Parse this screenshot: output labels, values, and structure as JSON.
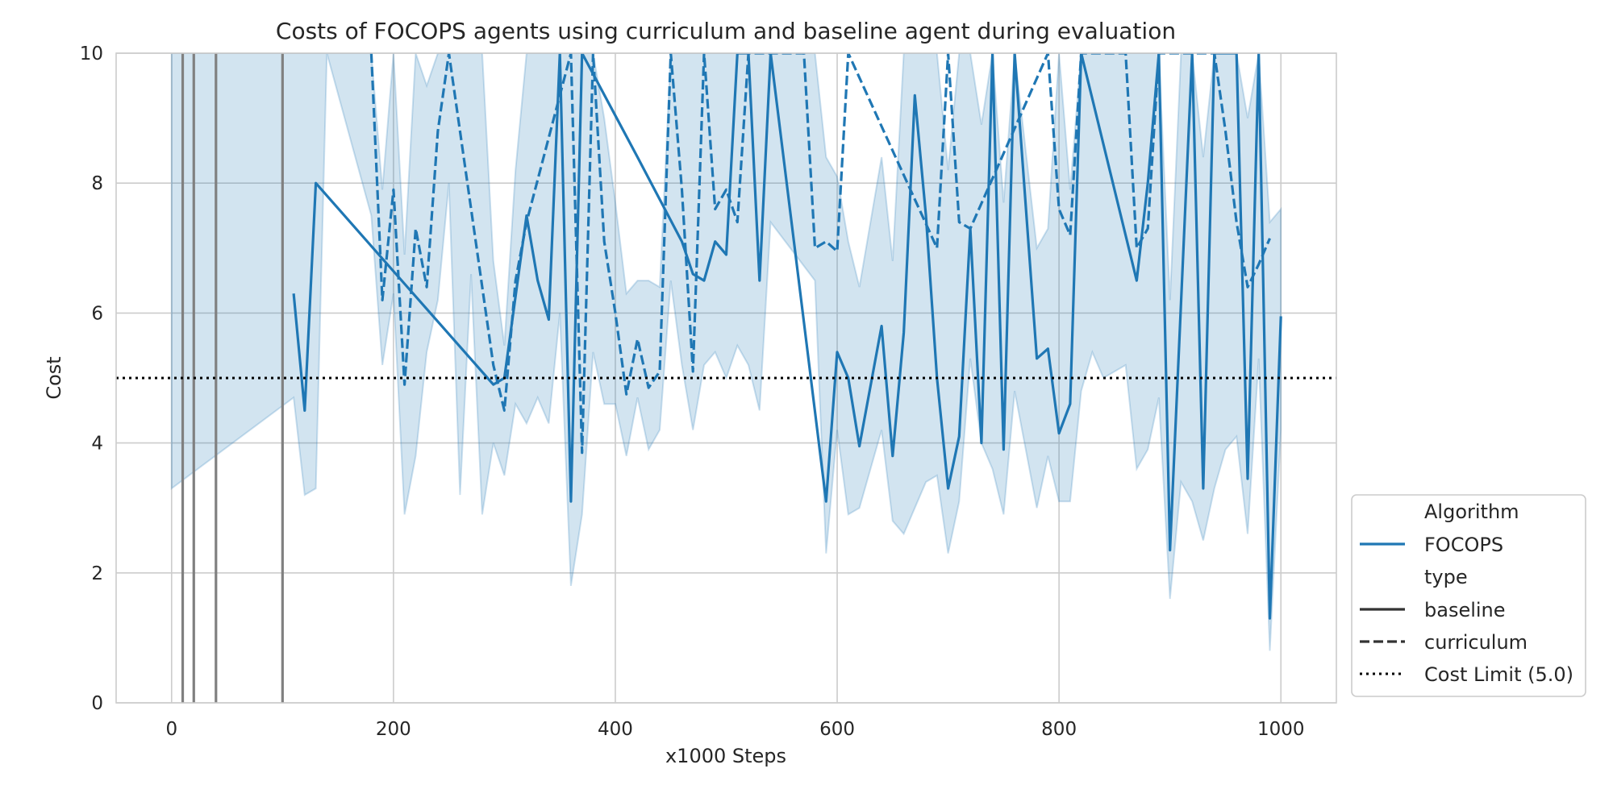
{
  "chart_data": {
    "type": "line",
    "title": "Costs of FOCOPS agents using curriculum and baseline agent during evaluation",
    "xlabel": "x1000 Steps",
    "ylabel": "Cost",
    "xlim": [
      -50,
      1050
    ],
    "ylim": [
      0,
      10
    ],
    "xticks": [
      0,
      200,
      400,
      600,
      800,
      1000
    ],
    "yticks": [
      0,
      2,
      4,
      6,
      8,
      10
    ],
    "grid": true,
    "legend_position": "lower-right-outside",
    "colors": {
      "focops": "#1f77b4",
      "band": "#1f77b4",
      "task_switch": "#808080",
      "limit": "#000000"
    },
    "cost_limit": 5.0,
    "task_switch_steps": [
      10,
      20,
      40,
      100
    ],
    "series": [
      {
        "name": "baseline",
        "style": "solid",
        "x": [
          110,
          120,
          130,
          290,
          300,
          320,
          330,
          340,
          350,
          360,
          370,
          420,
          460,
          470,
          480,
          490,
          500,
          510,
          520,
          530,
          540,
          590,
          600,
          610,
          620,
          640,
          650,
          660,
          670,
          680,
          690,
          700,
          710,
          720,
          730,
          740,
          750,
          760,
          780,
          790,
          800,
          810,
          820,
          870,
          880,
          890,
          900,
          920,
          930,
          940,
          960,
          970,
          980,
          990,
          1000
        ],
        "y": [
          6.3,
          4.5,
          8.0,
          4.9,
          5.0,
          7.5,
          6.5,
          5.9,
          10.0,
          3.1,
          10.0,
          8.4,
          7.1,
          6.6,
          6.5,
          7.1,
          6.9,
          10.0,
          10.0,
          6.5,
          10.0,
          3.1,
          5.4,
          5.0,
          3.95,
          5.8,
          3.8,
          5.7,
          9.35,
          7.5,
          5.0,
          3.3,
          4.1,
          7.3,
          4.0,
          10.0,
          3.9,
          10.0,
          5.3,
          5.45,
          4.15,
          4.6,
          10.0,
          6.5,
          8.0,
          10.0,
          2.35,
          10.0,
          3.3,
          10.0,
          10.0,
          3.45,
          10.0,
          1.3,
          5.95
        ]
      },
      {
        "name": "curriculum",
        "style": "dashed",
        "x": [
          180,
          190,
          200,
          210,
          220,
          230,
          240,
          250,
          290,
          300,
          310,
          320,
          360,
          370,
          380,
          390,
          400,
          410,
          420,
          430,
          440,
          450,
          460,
          470,
          480,
          490,
          500,
          510,
          520,
          570,
          580,
          590,
          600,
          610,
          690,
          700,
          710,
          720,
          790,
          800,
          810,
          820,
          860,
          870,
          880,
          890,
          940,
          950,
          960,
          970,
          980,
          990
        ],
        "y": [
          10.0,
          6.2,
          7.9,
          4.9,
          7.3,
          6.4,
          8.8,
          10.0,
          5.2,
          4.5,
          6.5,
          7.4,
          10.0,
          3.85,
          10.0,
          7.1,
          6.0,
          4.75,
          5.6,
          4.85,
          5.1,
          10.0,
          7.9,
          5.1,
          10.0,
          7.6,
          7.9,
          7.4,
          10.0,
          10.0,
          7.0,
          7.1,
          6.95,
          10.0,
          7.0,
          10.0,
          7.4,
          7.3,
          10.0,
          7.6,
          7.2,
          10.0,
          10.0,
          7.0,
          7.3,
          10.0,
          10.0,
          8.8,
          7.4,
          6.4,
          6.75,
          7.15
        ]
      }
    ],
    "band": {
      "x": [
        0,
        110,
        120,
        130,
        140,
        180,
        190,
        200,
        210,
        220,
        230,
        240,
        250,
        260,
        270,
        280,
        290,
        300,
        310,
        320,
        330,
        340,
        350,
        360,
        370,
        380,
        390,
        400,
        410,
        420,
        430,
        440,
        450,
        460,
        470,
        480,
        490,
        500,
        510,
        520,
        530,
        540,
        580,
        590,
        600,
        610,
        620,
        640,
        650,
        660,
        670,
        680,
        690,
        700,
        710,
        720,
        730,
        740,
        750,
        760,
        780,
        790,
        800,
        810,
        820,
        830,
        840,
        860,
        870,
        880,
        890,
        900,
        910,
        920,
        930,
        940,
        950,
        960,
        970,
        980,
        990,
        1000
      ],
      "lower": [
        3.3,
        4.7,
        3.2,
        3.3,
        10.0,
        7.5,
        5.2,
        6.3,
        2.9,
        3.8,
        5.4,
        6.2,
        8.0,
        3.2,
        6.6,
        2.9,
        4.0,
        3.5,
        4.6,
        4.3,
        4.7,
        4.3,
        6.0,
        1.8,
        2.9,
        5.4,
        4.6,
        4.6,
        3.8,
        4.7,
        3.9,
        4.2,
        6.5,
        5.2,
        4.2,
        5.2,
        5.4,
        5.0,
        5.5,
        5.2,
        4.5,
        7.4,
        6.5,
        2.3,
        4.2,
        2.9,
        3.0,
        4.2,
        2.8,
        2.6,
        3.0,
        3.4,
        3.5,
        2.3,
        3.1,
        5.3,
        4.0,
        3.6,
        2.9,
        4.8,
        3.0,
        3.8,
        3.1,
        3.1,
        4.8,
        5.4,
        5.0,
        5.2,
        3.6,
        3.9,
        4.7,
        1.6,
        3.4,
        3.1,
        2.5,
        3.3,
        3.9,
        4.1,
        2.6,
        5.3,
        0.8,
        4.2
      ],
      "upper": [
        10.0,
        10.0,
        10.0,
        10.0,
        10.0,
        10.0,
        7.9,
        10.0,
        6.9,
        10.0,
        9.5,
        10.0,
        10.0,
        10.0,
        10.0,
        10.0,
        6.8,
        5.5,
        8.2,
        10.0,
        10.0,
        10.0,
        10.0,
        10.0,
        10.0,
        10.0,
        9.0,
        7.7,
        6.3,
        6.5,
        6.5,
        6.4,
        10.0,
        10.0,
        10.0,
        10.0,
        10.0,
        10.0,
        10.0,
        10.0,
        10.0,
        10.0,
        10.0,
        8.4,
        8.1,
        7.1,
        6.4,
        8.4,
        6.8,
        10.0,
        10.0,
        10.0,
        10.0,
        8.2,
        10.0,
        10.0,
        8.9,
        10.0,
        7.7,
        10.0,
        7.0,
        7.3,
        10.0,
        7.9,
        10.0,
        10.0,
        10.0,
        10.0,
        10.0,
        10.0,
        10.0,
        6.2,
        10.0,
        10.0,
        8.4,
        10.0,
        10.0,
        10.0,
        9.0,
        10.0,
        7.4,
        7.6
      ]
    },
    "legend": {
      "group_algorithm": "Algorithm",
      "algorithm_entry": "FOCOPS",
      "group_type": "type",
      "type_baseline": "baseline",
      "type_curriculum": "curriculum",
      "limit_entry": "Cost Limit (5.0)"
    }
  }
}
